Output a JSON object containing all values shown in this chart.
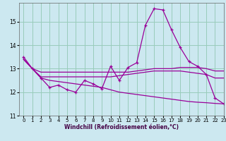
{
  "background_color": "#cce8f0",
  "grid_color": "#99ccbb",
  "line_color": "#990099",
  "xlabel": "Windchill (Refroidissement éolien,°C)",
  "xlim": [
    -0.5,
    23
  ],
  "ylim": [
    11.0,
    15.8
  ],
  "yticks": [
    11,
    12,
    13,
    14,
    15
  ],
  "xticks": [
    0,
    1,
    2,
    3,
    4,
    5,
    6,
    7,
    8,
    9,
    10,
    11,
    12,
    13,
    14,
    15,
    16,
    17,
    18,
    19,
    20,
    21,
    22,
    23
  ],
  "series": [
    [
      13.5,
      13.0,
      12.6,
      12.2,
      12.3,
      12.1,
      12.0,
      12.5,
      12.35,
      12.15,
      13.1,
      12.5,
      13.05,
      13.25,
      14.85,
      15.55,
      15.5,
      14.65,
      13.9,
      13.3,
      13.1,
      12.75,
      11.75,
      11.5
    ],
    [
      13.4,
      13.0,
      12.85,
      12.85,
      12.85,
      12.85,
      12.85,
      12.85,
      12.85,
      12.85,
      12.85,
      12.85,
      12.85,
      12.9,
      12.95,
      13.0,
      13.0,
      13.0,
      13.05,
      13.05,
      13.05,
      13.0,
      12.9,
      12.9
    ],
    [
      13.4,
      13.0,
      12.65,
      12.65,
      12.65,
      12.65,
      12.65,
      12.65,
      12.65,
      12.65,
      12.65,
      12.7,
      12.75,
      12.8,
      12.85,
      12.9,
      12.9,
      12.9,
      12.9,
      12.85,
      12.8,
      12.75,
      12.6,
      12.6
    ],
    [
      13.4,
      13.0,
      12.6,
      12.5,
      12.45,
      12.4,
      12.35,
      12.3,
      12.25,
      12.2,
      12.1,
      12.0,
      11.95,
      11.9,
      11.85,
      11.8,
      11.75,
      11.7,
      11.65,
      11.6,
      11.57,
      11.55,
      11.52,
      11.5
    ]
  ]
}
